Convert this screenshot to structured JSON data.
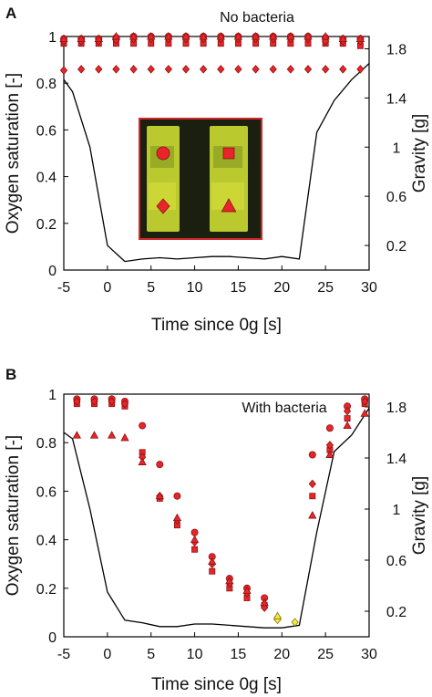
{
  "colors": {
    "marker_fill": "#e8262a",
    "marker_stroke": "#8a1010",
    "highlight_fill": "#f3e84a",
    "gravity_line": "#000000",
    "inset_border": "#d0282c"
  },
  "chart_data": [
    {
      "panel": "A",
      "type": "scatter",
      "title": "No bacteria",
      "xlabel": "Time since 0g [s]",
      "ylabel": "Oxygen saturation [-]",
      "y2label": "Gravity [g]",
      "xlim": [
        -5,
        30
      ],
      "ylim": [
        0,
        1
      ],
      "y2lim": [
        0,
        1.9
      ],
      "xticks": [
        -5,
        0,
        5,
        10,
        15,
        20,
        25,
        30
      ],
      "yticks": [
        0,
        0.2,
        0.4,
        0.6,
        0.8,
        1
      ],
      "y2ticks": [
        0.2,
        0.6,
        1,
        1.4,
        1.8
      ],
      "series": [
        {
          "marker": "circle",
          "x": [
            -5,
            -3,
            -1,
            1,
            3,
            5,
            7,
            9,
            11,
            13,
            15,
            17,
            19,
            21,
            23,
            25,
            27,
            29
          ],
          "y": [
            0.99,
            0.99,
            0.99,
            0.995,
            1.0,
            1.0,
            1.0,
            1.0,
            1.0,
            1.0,
            1.0,
            1.0,
            1.0,
            1.0,
            1.0,
            0.995,
            0.99,
            0.99
          ]
        },
        {
          "marker": "square",
          "x": [
            -5,
            -3,
            -1,
            1,
            3,
            5,
            7,
            9,
            11,
            13,
            15,
            17,
            19,
            21,
            23,
            25,
            27,
            29
          ],
          "y": [
            0.97,
            0.97,
            0.97,
            0.97,
            0.97,
            0.97,
            0.97,
            0.97,
            0.97,
            0.97,
            0.97,
            0.97,
            0.97,
            0.97,
            0.97,
            0.97,
            0.97,
            0.96
          ]
        },
        {
          "marker": "diamond",
          "x": [
            -5,
            -3,
            -1,
            1,
            3,
            5,
            7,
            9,
            11,
            13,
            15,
            17,
            19,
            21,
            23,
            25,
            27,
            29
          ],
          "y": [
            0.98,
            0.98,
            0.98,
            0.985,
            0.99,
            0.99,
            0.99,
            0.99,
            0.99,
            0.99,
            0.99,
            0.99,
            0.99,
            0.99,
            0.99,
            0.98,
            0.98,
            0.98
          ]
        },
        {
          "marker": "diamond",
          "x": [
            -5,
            -3,
            -1,
            1,
            3,
            5,
            7,
            9,
            11,
            13,
            15,
            17,
            19,
            21,
            23,
            25,
            27,
            29
          ],
          "y": [
            0.855,
            0.86,
            0.86,
            0.86,
            0.86,
            0.86,
            0.86,
            0.86,
            0.86,
            0.86,
            0.86,
            0.86,
            0.86,
            0.86,
            0.86,
            0.86,
            0.86,
            0.86
          ]
        },
        {
          "marker": "triangle",
          "x": [
            -5,
            -3,
            -1,
            1,
            3,
            5,
            7,
            9,
            11,
            13,
            15,
            17,
            19,
            21,
            23,
            25,
            27,
            29
          ],
          "y": [
            0.99,
            0.99,
            0.99,
            1.0,
            1.0,
            1.0,
            1.0,
            1.0,
            1.0,
            1.0,
            1.0,
            1.0,
            1.0,
            1.0,
            1.0,
            1.0,
            0.99,
            0.99
          ]
        }
      ],
      "gravity": {
        "x": [
          -5,
          -4,
          -2,
          0,
          2,
          4,
          6,
          8,
          10,
          12,
          14,
          16,
          18,
          20,
          22,
          24,
          26,
          28,
          30
        ],
        "y": [
          1.55,
          1.45,
          1.0,
          0.2,
          0.07,
          0.09,
          0.1,
          0.09,
          0.1,
          0.11,
          0.11,
          0.1,
          0.09,
          0.11,
          0.09,
          1.12,
          1.38,
          1.55,
          1.68
        ]
      },
      "inset": {
        "background": "#1a1f10",
        "strip_color": "#b9c92e",
        "markers": [
          {
            "marker": "circle",
            "strip": "left",
            "pos": "upper"
          },
          {
            "marker": "diamond",
            "strip": "left",
            "pos": "lower"
          },
          {
            "marker": "square",
            "strip": "right",
            "pos": "upper"
          },
          {
            "marker": "triangle",
            "strip": "right",
            "pos": "lower"
          }
        ]
      }
    },
    {
      "panel": "B",
      "type": "scatter",
      "title": "With bacteria",
      "xlabel": "Time since 0g [s]",
      "ylabel": "Oxygen saturation [-]",
      "y2label": "Gravity [g]",
      "xlim": [
        -5,
        30
      ],
      "ylim": [
        0,
        1
      ],
      "y2lim": [
        0,
        1.9
      ],
      "xticks": [
        -5,
        0,
        5,
        10,
        15,
        20,
        25,
        30
      ],
      "yticks": [
        0,
        0.2,
        0.4,
        0.6,
        0.8,
        1
      ],
      "y2ticks": [
        0.2,
        0.6,
        1,
        1.4,
        1.8
      ],
      "series": [
        {
          "marker": "circle",
          "x": [
            -3.5,
            -1.5,
            0.5,
            2,
            4,
            6,
            8,
            10,
            12,
            14,
            16,
            18,
            23.5,
            25.5,
            27.5,
            29.5
          ],
          "y": [
            0.98,
            0.98,
            0.98,
            0.97,
            0.87,
            0.71,
            0.58,
            0.43,
            0.33,
            0.24,
            0.2,
            0.16,
            0.75,
            0.86,
            0.95,
            0.98
          ]
        },
        {
          "marker": "square",
          "x": [
            -3.5,
            -1.5,
            0.5,
            2,
            4,
            6,
            8,
            10,
            12,
            14,
            16,
            18,
            23.5,
            25.5,
            27.5,
            29.5
          ],
          "y": [
            0.96,
            0.96,
            0.96,
            0.95,
            0.76,
            0.57,
            0.46,
            0.36,
            0.27,
            0.2,
            0.16,
            0.13,
            0.58,
            0.77,
            0.9,
            0.96
          ]
        },
        {
          "marker": "diamond",
          "x": [
            -3.5,
            -1.5,
            0.5,
            2,
            4,
            6,
            8,
            10,
            12,
            14,
            16,
            18,
            23.5,
            25.5,
            27.5,
            29.5
          ],
          "y": [
            0.97,
            0.97,
            0.97,
            0.96,
            0.74,
            0.58,
            0.48,
            0.39,
            0.3,
            0.22,
            0.18,
            0.12,
            0.63,
            0.79,
            0.93,
            0.97
          ]
        },
        {
          "marker": "triangle",
          "x": [
            -3.5,
            -1.5,
            0.5,
            2,
            4,
            6,
            8,
            10,
            12,
            14,
            16,
            18,
            23.5,
            25.5,
            27.5,
            29.5
          ],
          "y": [
            0.83,
            0.83,
            0.83,
            0.82,
            0.72,
            0.58,
            0.49,
            0.4,
            0.31,
            0.23,
            0.19,
            0.14,
            0.5,
            0.75,
            0.87,
            0.92
          ]
        },
        {
          "marker": "diamond",
          "highlight": true,
          "x": [
            19.5,
            19.5,
            21.5
          ],
          "y": [
            0.08,
            0.07,
            0.06
          ]
        },
        {
          "marker": "triangle",
          "highlight": true,
          "x": [
            19.5
          ],
          "y": [
            0.085
          ]
        }
      ],
      "gravity": {
        "x": [
          -5,
          -4,
          -2,
          0,
          2,
          4,
          6,
          8,
          10,
          12,
          14,
          16,
          18,
          20,
          22,
          24,
          26,
          28,
          30
        ],
        "y": [
          1.6,
          1.55,
          1.0,
          0.35,
          0.13,
          0.11,
          0.08,
          0.08,
          0.1,
          0.1,
          0.09,
          0.08,
          0.07,
          0.07,
          0.09,
          0.82,
          1.45,
          1.58,
          1.79
        ]
      }
    }
  ]
}
